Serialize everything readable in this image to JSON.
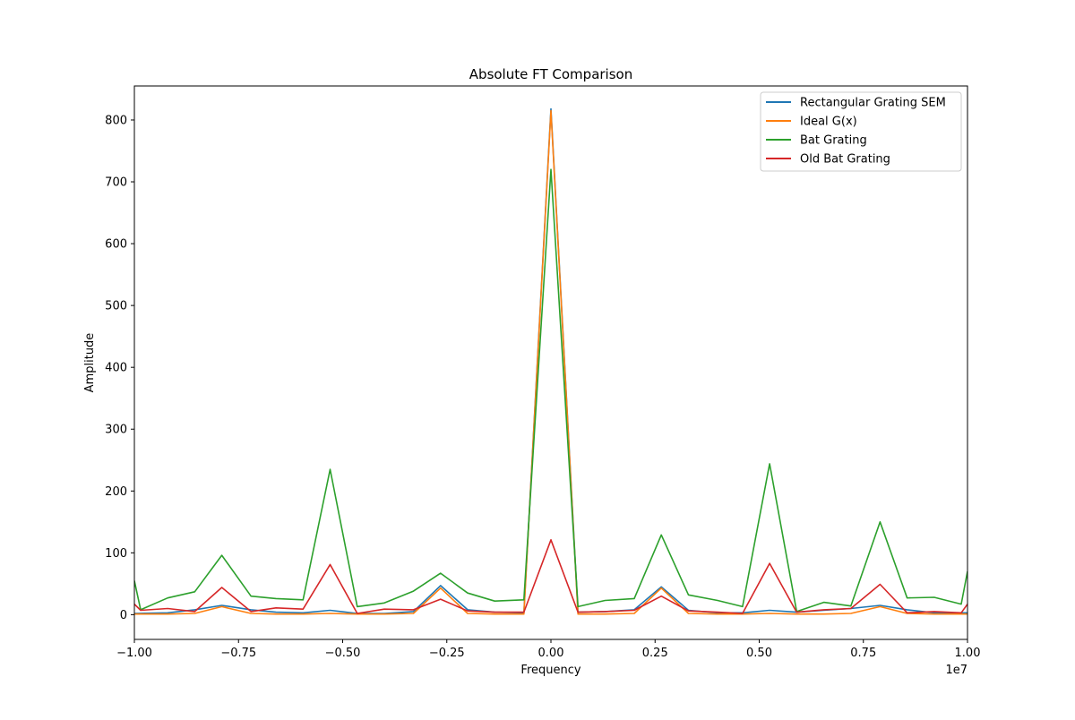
{
  "chart_data": {
    "type": "line",
    "title": "Absolute FT Comparison",
    "xlabel": "Frequency",
    "ylabel": "Amplitude",
    "x_offset_label": "1e7",
    "xlim": [
      -1.0,
      1.0
    ],
    "ylim": [
      -40,
      855
    ],
    "xticks": [
      -1.0,
      -0.75,
      -0.5,
      -0.25,
      0.0,
      0.25,
      0.5,
      0.75,
      1.0
    ],
    "xtick_labels": [
      "−1.00",
      "−0.75",
      "−0.50",
      "−0.25",
      "0.00",
      "0.25",
      "0.50",
      "0.75",
      "1.00"
    ],
    "yticks": [
      0,
      100,
      200,
      300,
      400,
      500,
      600,
      700,
      800
    ],
    "ytick_labels": [
      "0",
      "100",
      "200",
      "300",
      "400",
      "500",
      "600",
      "700",
      "800"
    ],
    "grid": false,
    "legend_position": "top-right",
    "series": [
      {
        "name": "Rectangular Grating SEM",
        "color": "#1f77b4",
        "points": [
          [
            -1.0,
            2
          ],
          [
            -0.92,
            3
          ],
          [
            -0.855,
            8
          ],
          [
            -0.79,
            15
          ],
          [
            -0.72,
            8
          ],
          [
            -0.66,
            4
          ],
          [
            -0.595,
            3
          ],
          [
            -0.53,
            7
          ],
          [
            -0.465,
            2
          ],
          [
            -0.4,
            2
          ],
          [
            -0.33,
            5
          ],
          [
            -0.265,
            47
          ],
          [
            -0.2,
            8
          ],
          [
            -0.135,
            4
          ],
          [
            -0.065,
            3
          ],
          [
            0.0,
            818
          ],
          [
            0.065,
            4
          ],
          [
            0.13,
            5
          ],
          [
            0.2,
            8
          ],
          [
            0.265,
            45
          ],
          [
            0.33,
            7
          ],
          [
            0.4,
            3
          ],
          [
            0.46,
            3
          ],
          [
            0.525,
            7
          ],
          [
            0.59,
            4
          ],
          [
            0.655,
            7
          ],
          [
            0.72,
            10
          ],
          [
            0.79,
            15
          ],
          [
            0.855,
            8
          ],
          [
            0.92,
            3
          ],
          [
            1.0,
            3
          ]
        ]
      },
      {
        "name": "Ideal G(x)",
        "color": "#ff7f0e",
        "points": [
          [
            -1.0,
            1
          ],
          [
            -0.92,
            1
          ],
          [
            -0.855,
            2
          ],
          [
            -0.79,
            13
          ],
          [
            -0.72,
            2
          ],
          [
            -0.66,
            1
          ],
          [
            -0.595,
            1
          ],
          [
            -0.53,
            2
          ],
          [
            -0.465,
            1
          ],
          [
            -0.4,
            1
          ],
          [
            -0.33,
            2
          ],
          [
            -0.265,
            43
          ],
          [
            -0.2,
            2
          ],
          [
            -0.135,
            1
          ],
          [
            -0.065,
            1
          ],
          [
            0.0,
            815
          ],
          [
            0.065,
            1
          ],
          [
            0.13,
            1
          ],
          [
            0.2,
            2
          ],
          [
            0.265,
            43
          ],
          [
            0.33,
            2
          ],
          [
            0.4,
            1
          ],
          [
            0.46,
            1
          ],
          [
            0.525,
            2
          ],
          [
            0.59,
            1
          ],
          [
            0.655,
            1
          ],
          [
            0.72,
            2
          ],
          [
            0.79,
            13
          ],
          [
            0.855,
            2
          ],
          [
            0.92,
            1
          ],
          [
            1.0,
            1
          ]
        ]
      },
      {
        "name": "Bat Grating",
        "color": "#2ca02c",
        "points": [
          [
            -1.0,
            55
          ],
          [
            -0.985,
            8
          ],
          [
            -0.92,
            27
          ],
          [
            -0.855,
            37
          ],
          [
            -0.79,
            96
          ],
          [
            -0.72,
            30
          ],
          [
            -0.66,
            26
          ],
          [
            -0.595,
            24
          ],
          [
            -0.53,
            235
          ],
          [
            -0.465,
            13
          ],
          [
            -0.4,
            19
          ],
          [
            -0.33,
            38
          ],
          [
            -0.265,
            67
          ],
          [
            -0.2,
            35
          ],
          [
            -0.135,
            22
          ],
          [
            -0.065,
            24
          ],
          [
            0.0,
            720
          ],
          [
            0.065,
            13
          ],
          [
            0.13,
            23
          ],
          [
            0.2,
            26
          ],
          [
            0.265,
            129
          ],
          [
            0.33,
            32
          ],
          [
            0.4,
            23
          ],
          [
            0.46,
            13
          ],
          [
            0.525,
            244
          ],
          [
            0.59,
            5
          ],
          [
            0.655,
            20
          ],
          [
            0.72,
            14
          ],
          [
            0.79,
            150
          ],
          [
            0.855,
            27
          ],
          [
            0.92,
            28
          ],
          [
            0.985,
            17
          ],
          [
            1.0,
            70
          ]
        ]
      },
      {
        "name": "Old Bat Grating",
        "color": "#d62728",
        "points": [
          [
            -1.0,
            17
          ],
          [
            -0.985,
            7
          ],
          [
            -0.92,
            10
          ],
          [
            -0.855,
            5
          ],
          [
            -0.79,
            44
          ],
          [
            -0.72,
            5
          ],
          [
            -0.66,
            11
          ],
          [
            -0.595,
            9
          ],
          [
            -0.53,
            81
          ],
          [
            -0.465,
            2
          ],
          [
            -0.4,
            9
          ],
          [
            -0.33,
            8
          ],
          [
            -0.265,
            25
          ],
          [
            -0.2,
            6
          ],
          [
            -0.135,
            4
          ],
          [
            -0.065,
            4
          ],
          [
            0.0,
            121
          ],
          [
            0.065,
            4
          ],
          [
            0.13,
            5
          ],
          [
            0.2,
            7
          ],
          [
            0.265,
            30
          ],
          [
            0.33,
            6
          ],
          [
            0.4,
            4
          ],
          [
            0.46,
            2
          ],
          [
            0.525,
            83
          ],
          [
            0.59,
            4
          ],
          [
            0.655,
            8
          ],
          [
            0.72,
            10
          ],
          [
            0.79,
            49
          ],
          [
            0.855,
            3
          ],
          [
            0.92,
            5
          ],
          [
            0.985,
            3
          ],
          [
            1.0,
            17
          ]
        ]
      }
    ]
  }
}
